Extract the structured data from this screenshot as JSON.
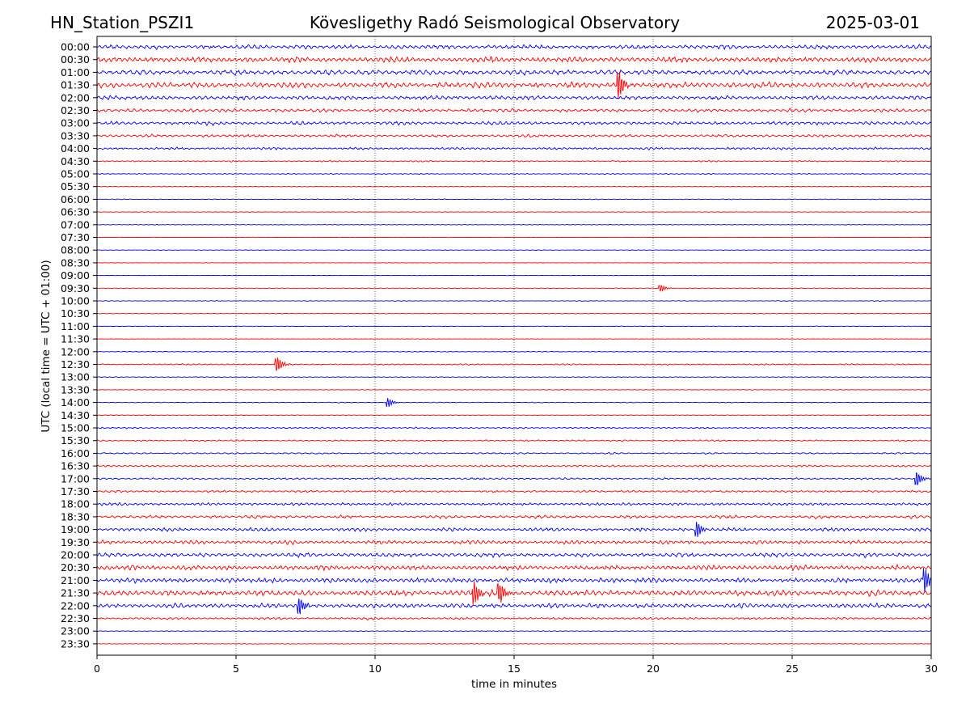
{
  "header": {
    "station": "HN_Station_PSZI1",
    "observatory": "Kövesligethy Radó Seismological Observatory",
    "date": "2025-03-01"
  },
  "chart_data": {
    "type": "line",
    "xlabel": "time in minutes",
    "ylabel": "UTC (local time = UTC + 01:00)",
    "xlim": [
      0,
      30
    ],
    "x_ticks": [
      "0",
      "5",
      "10",
      "15",
      "20",
      "25",
      "30"
    ],
    "x_tick_values": [
      0,
      5,
      10,
      15,
      20,
      25,
      30
    ],
    "grid": "vertical dotted at x ticks",
    "rows": [
      "00:00",
      "00:30",
      "01:00",
      "01:30",
      "02:00",
      "02:30",
      "03:00",
      "03:30",
      "04:00",
      "04:30",
      "05:00",
      "05:30",
      "06:00",
      "06:30",
      "07:00",
      "07:30",
      "08:00",
      "08:30",
      "09:00",
      "09:30",
      "10:00",
      "10:30",
      "11:00",
      "11:30",
      "12:00",
      "12:30",
      "13:00",
      "13:30",
      "14:00",
      "14:30",
      "15:00",
      "15:30",
      "16:00",
      "16:30",
      "17:00",
      "17:30",
      "18:00",
      "18:30",
      "19:00",
      "19:30",
      "20:00",
      "20:30",
      "21:00",
      "21:30",
      "22:00",
      "22:30",
      "23:00",
      "23:30"
    ],
    "trace_colors": [
      "#0000ff",
      "#ff0000"
    ],
    "relative_amplitude": [
      0.55,
      0.75,
      0.65,
      0.75,
      0.55,
      0.45,
      0.45,
      0.35,
      0.32,
      0.18,
      0.13,
      0.1,
      0.1,
      0.07,
      0.08,
      0.06,
      0.06,
      0.05,
      0.05,
      0.07,
      0.09,
      0.07,
      0.08,
      0.06,
      0.1,
      0.18,
      0.1,
      0.08,
      0.1,
      0.1,
      0.2,
      0.2,
      0.2,
      0.25,
      0.25,
      0.28,
      0.35,
      0.4,
      0.45,
      0.5,
      0.55,
      0.65,
      0.65,
      0.75,
      0.6,
      0.3,
      0.1,
      0.1
    ],
    "events": [
      {
        "row": "01:30",
        "minute": 18.8,
        "amplitude": 1.6
      },
      {
        "row": "12:30",
        "minute": 6.5,
        "amplitude": 0.9
      },
      {
        "row": "14:00",
        "minute": 10.5,
        "amplitude": 0.5
      },
      {
        "row": "09:30",
        "minute": 20.3,
        "amplitude": 0.4
      },
      {
        "row": "17:00",
        "minute": 29.5,
        "amplitude": 0.9
      },
      {
        "row": "19:00",
        "minute": 21.6,
        "amplitude": 0.9
      },
      {
        "row": "21:30",
        "minute": 13.6,
        "amplitude": 1.3
      },
      {
        "row": "21:30",
        "minute": 14.5,
        "amplitude": 1.2
      },
      {
        "row": "21:00",
        "minute": 29.8,
        "amplitude": 1.4
      },
      {
        "row": "22:00",
        "minute": 7.3,
        "amplitude": 1.0
      }
    ]
  }
}
